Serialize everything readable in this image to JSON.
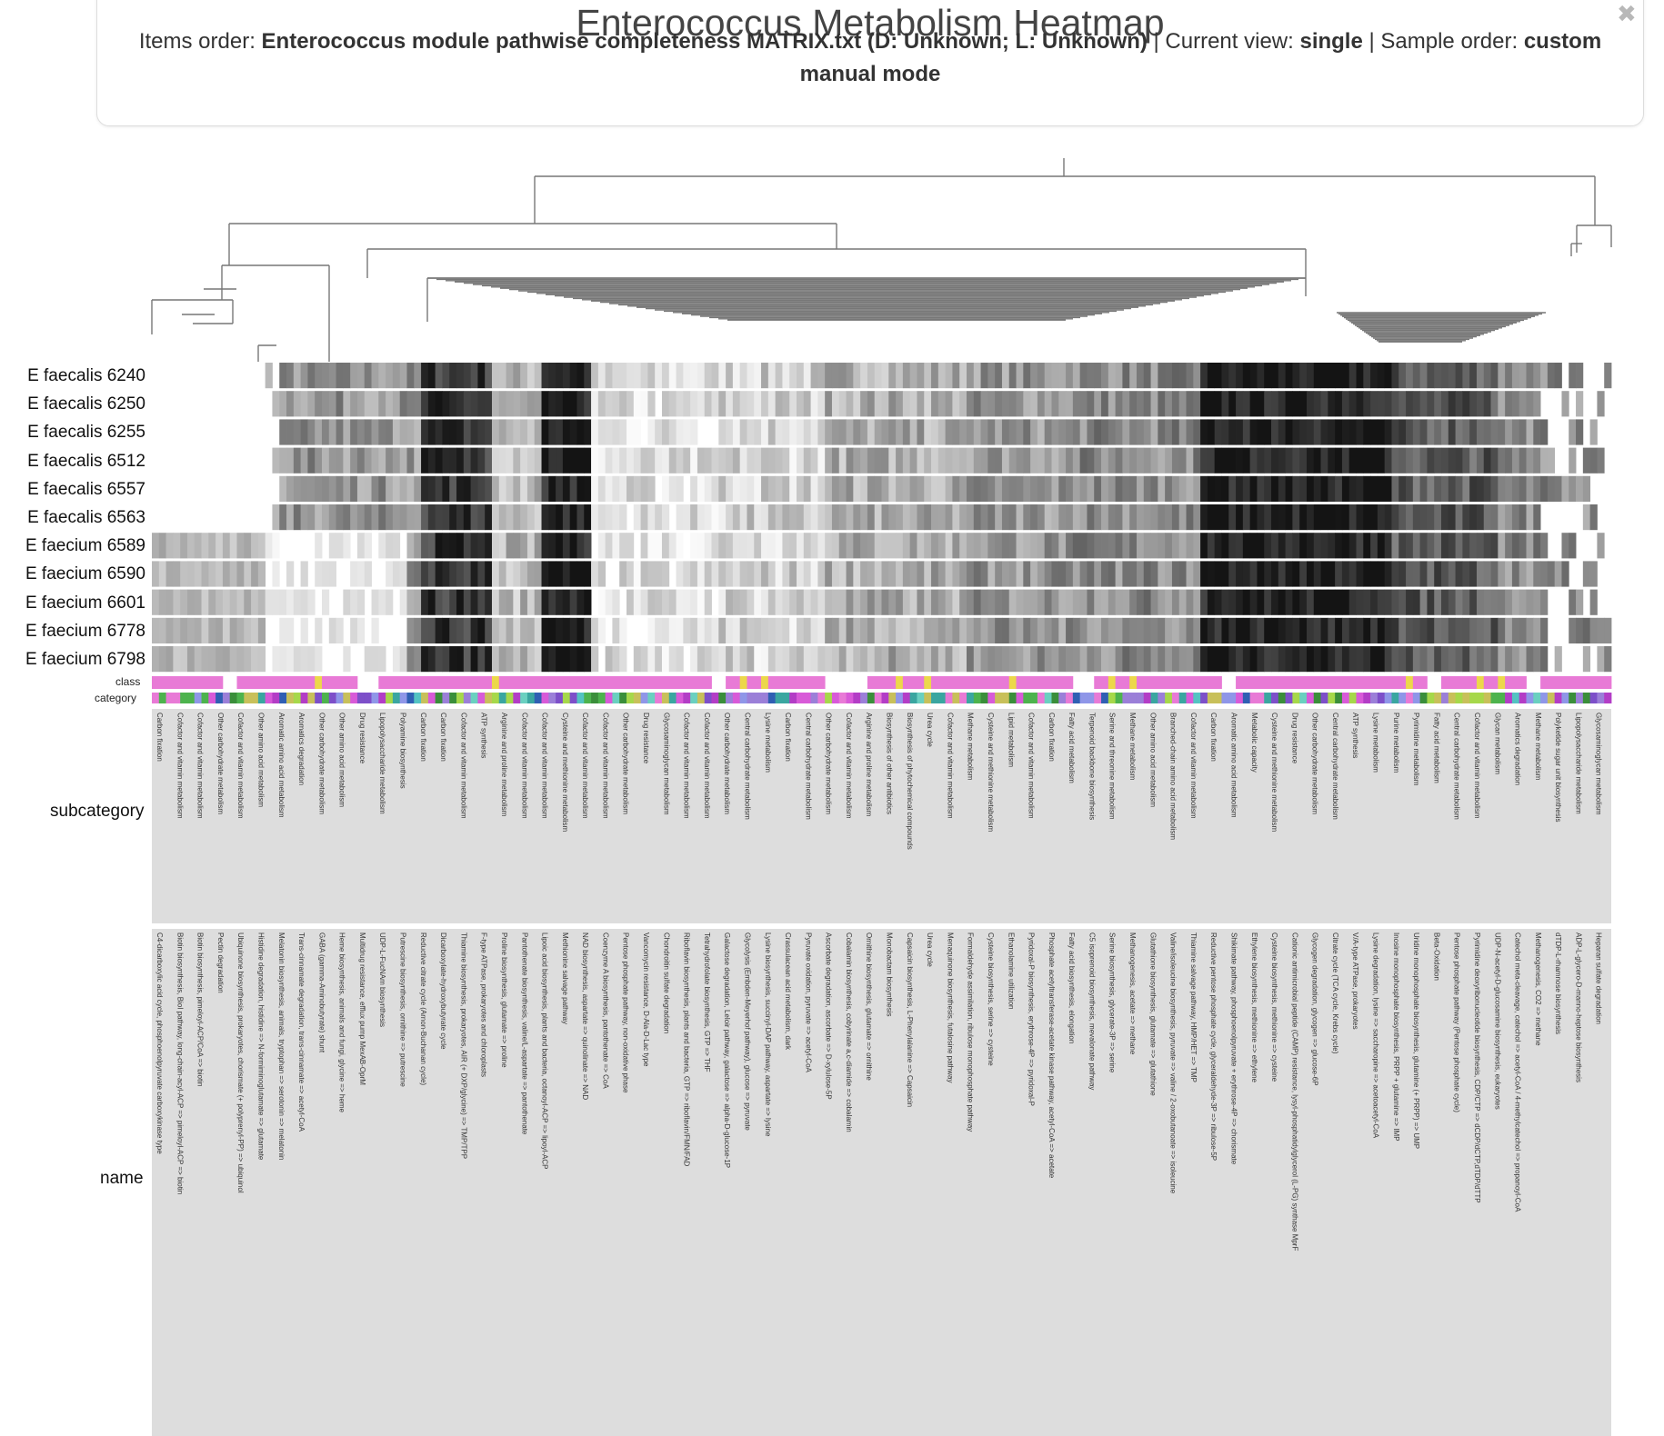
{
  "header": {
    "title": "Enterococcus Metabolism Heatmap",
    "items_order_label": "Items order:",
    "items_order_value": "Enterococcus module pathwise completeness MATRIX.txt (D: Unknown; L: Unknown)",
    "current_view_label": "| Current view:",
    "current_view_value": "single",
    "sample_order_label": "| Sample order:",
    "sample_order_value": "custom manual mode",
    "close_icon": "close-icon"
  },
  "samples": [
    "E faecalis 6240",
    "E faecalis 6250",
    "E faecalis 6255",
    "E faecalis 6512",
    "E faecalis 6557",
    "E faecalis 6563",
    "E faecium 6589",
    "E faecium 6590",
    "E faecium 6601",
    "E faecium 6778",
    "E faecium 6798"
  ],
  "layers": {
    "class": "class",
    "category": "category",
    "subcategory": "subcategory",
    "name": "name"
  },
  "colors": {
    "class_pink": "#e87ad6",
    "class_yellow": "#ecd84a",
    "annotation_bg": "#dddddd",
    "dendrogram": "#777777"
  },
  "subcategory_labels": [
    "Carbon fixation",
    "Cofactor and vitamin metabolism",
    "Cofactor and vitamin metabolism",
    "Other carbohydrate metabolism",
    "Cofactor and vitamin metabolism",
    "Other amino acid metabolism",
    "Aromatic amino acid metabolism",
    "Aromatics degradation",
    "Other carbohydrate metabolism",
    "Other amino acid metabolism",
    "Drug resistance",
    "Lipopolysaccharide metabolism",
    "Polyamine biosynthesis",
    "Carbon fixation",
    "Carbon fixation",
    "Cofactor and vitamin metabolism",
    "ATP synthesis",
    "Arginine and proline metabolism",
    "Cofactor and vitamin metabolism",
    "Cofactor and vitamin metabolism",
    "Cysteine and methionine metabolism",
    "Cofactor and vitamin metabolism",
    "Cofactor and vitamin metabolism",
    "Other carbohydrate metabolism",
    "Drug resistance",
    "Glycosaminoglycan metabolism",
    "Cofactor and vitamin metabolism",
    "Cofactor and vitamin metabolism",
    "Other carbohydrate metabolism",
    "Central carbohydrate metabolism",
    "Lysine metabolism",
    "Carbon fixation",
    "Central carbohydrate metabolism",
    "Other carbohydrate metabolism",
    "Cofactor and vitamin metabolism",
    "Arginine and proline metabolism",
    "Biosynthesis of other antibiotics",
    "Biosynthesis of phytochemical compounds",
    "Urea cycle",
    "Cofactor and vitamin metabolism",
    "Methane metabolism",
    "Cysteine and methionine metabolism",
    "Lipid metabolism",
    "Cofactor and vitamin metabolism",
    "Carbon fixation",
    "Fatty acid metabolism",
    "Terpenoid backbone biosynthesis",
    "Serine and threonine metabolism",
    "Methane metabolism",
    "Other amino acid metabolism",
    "Branched-chain amino acid metabolism",
    "Cofactor and vitamin metabolism",
    "Carbon fixation",
    "Aromatic amino acid metabolism",
    "Metabolic capacity",
    "Cysteine and methionine metabolism",
    "Drug resistance",
    "Other carbohydrate metabolism",
    "Central carbohydrate metabolism",
    "ATP synthesis",
    "Lysine metabolism",
    "Purine metabolism",
    "Pyrimidine metabolism",
    "Fatty acid metabolism",
    "Central carbohydrate metabolism",
    "Cofactor and vitamin metabolism",
    "Glycan metabolism",
    "Aromatics degradation",
    "Methane metabolism",
    "Polyketide sugar unit biosynthesis",
    "Lipopolysaccharide metabolism",
    "Glycosaminoglycan metabolism"
  ],
  "name_labels": [
    "C4-dicarboxylic acid cycle, phosphoenolpyruvate carboxykinase type",
    "Biotin biosynthesis, BioI pathway, long-chain-acyl-ACP => pimeloyl-ACP => biotin",
    "Biotin biosynthesis, pimeloyl-ACP/CoA => biotin",
    "Pectin degradation",
    "Ubiquinone biosynthesis, prokaryotes, chorismate (+ polyprenyl-PP) => ubiquinol",
    "Histidine degradation, histidine => N-formiminoglutamate => glutamate",
    "Melatonin biosynthesis, animals, tryptophan => serotonin => melatonin",
    "Trans-cinnamate degradation, trans-cinnamate => acetyl-CoA",
    "GABA (gamma-Aminobutyrate) shunt",
    "Heme biosynthesis, animals and fungi, glycine => heme",
    "Multidrug resistance, efflux pump MexAB-OprM",
    "UDP-L-FucNAm biosynthesis",
    "Putrescine biosynthesis, ornithine => putrescine",
    "Reductive citrate cycle (Arnon-Buchanan cycle)",
    "Dicarboxylate-hydroxybutyrate cycle",
    "Thiamine biosynthesis, prokaryotes, AIR (+ DXP/glycine) => TMP/TPP",
    "F-type ATPase, prokaryotes and chloroplasts",
    "Proline biosynthesis, glutamate => proline",
    "Pantothenate biosynthesis, valine/L-aspartate => pantothenate",
    "Lipoic acid biosynthesis, plants and bacteria, octanoyl-ACP => lipoyl-ACP",
    "Methionine salvage pathway",
    "NAD biosynthesis, aspartate => quinolinate => NAD",
    "Coenzyme A biosynthesis, pantothenate => CoA",
    "Pentose phosphate pathway, non-oxidative phase",
    "Vancomycin resistance, D-Ala-D-Lac type",
    "Chondroitin sulfate degradation",
    "Riboflavin biosynthesis, plants and bacteria, GTP => riboflavin/FMN/FAD",
    "Tetrahydrofolate biosynthesis, GTP => THF",
    "Galactose degradation, Leloir pathway, galactose => alpha-D-glucose-1P",
    "Glycolysis (Embden-Meyerhof pathway), glucose => pyruvate",
    "Lysine biosynthesis, succinyl-DAP pathway, aspartate => lysine",
    "Crassulacean acid metabolism, dark",
    "Pyruvate oxidation, pyruvate => acetyl-CoA",
    "Ascorbate degradation, ascorbate => D-xylulose-5P",
    "Cobalamin biosynthesis, cobyrinate a,c-diamide => cobalamin",
    "Ornithine biosynthesis, glutamate => ornithine",
    "Monobactam biosynthesis",
    "Capsaicin biosynthesis, L-Phenylalanine => Capsaicin",
    "Urea cycle",
    "Menaquinone biosynthesis, futalosine pathway",
    "Formaldehyde assimilation, ribulose monophosphate pathway",
    "Cysteine biosynthesis, serine => cysteine",
    "Ethanolamine utilization",
    "Pyridoxal-P biosynthesis, erythrose-4P => pyridoxal-P",
    "Phosphate acetyltransferase-acetate kinase pathway, acetyl-CoA => acetate",
    "Fatty acid biosynthesis, elongation",
    "C5 isoprenoid biosynthesis, mevalonate pathway",
    "Serine biosynthesis, glycerate-3P => serine",
    "Methanogenesis, acetate => methane",
    "Glutathione biosynthesis, glutamate => glutathione",
    "Valine/isoleucine biosynthesis, pyruvate => valine / 2-oxobutanoate => isoleucine",
    "Thiamine salvage pathway, HMP/HET => TMP",
    "Reductive pentose phosphate cycle, glyceraldehyde-3P => ribulose-5P",
    "Shikimate pathway, phosphoenolpyruvate + erythrose-4P => chorismate",
    "Ethylene biosynthesis, methionine => ethylene",
    "Cysteine biosynthesis, methionine => cysteine",
    "Cationic antimicrobial peptide (CAMP) resistance, lysyl-phosphatidylglycerol (L-PG) synthase MprF",
    "Glycogen degradation, glycogen => glucose-6P",
    "Citrate cycle (TCA cycle, Krebs cycle)",
    "V/A-type ATPase, prokaryotes",
    "Lysine degradation, lysine => saccharopine => acetoacetyl-CoA",
    "Inosine monophosphate biosynthesis, PRPP + glutamine => IMP",
    "Uridine monophosphate biosynthesis, glutamine (+ PRPP) => UMP",
    "Beta-Oxidation",
    "Pentose phosphate pathway (Pentose phosphate cycle)",
    "Pyrimidine deoxyribonucleotide biosynthesis, CDP/CTP => dCDP/dCTP,dTDP/dTTP",
    "UDP-N-acetyl-D-glucosamine biosynthesis, eukaryotes",
    "Catechol meta-cleavage, catechol => acetyl-CoA / 4-methylcatechol => propanoyl-CoA",
    "Methanogenesis, CO2 => methane",
    "dTDP-L-rhamnose biosynthesis",
    "ADP-L-glycero-D-manno-heptose biosynthesis",
    "Heparan sulfate degradation"
  ]
}
